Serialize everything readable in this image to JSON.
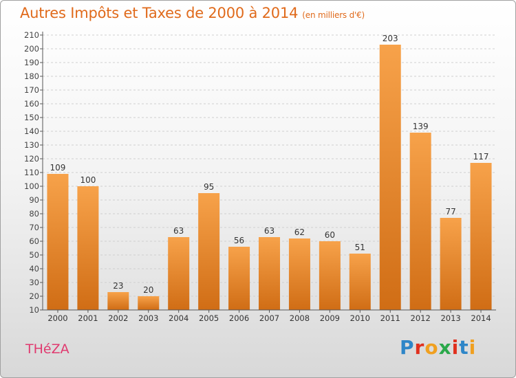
{
  "header": {
    "title": "Autres Impôts et Taxes de 2000 à 2014",
    "subtitle": "(en milliers d'€)"
  },
  "footer": {
    "commune": "THéZA",
    "brand": "Proxiti",
    "brand_colors": [
      "#2e86c8",
      "#e0301e",
      "#f0a020",
      "#2aa84a",
      "#e0301e",
      "#2e86c8",
      "#f0a020"
    ]
  },
  "colors": {
    "bar_top": "#f7a24a",
    "bar_bottom": "#d06d15",
    "title": "#e06a1b",
    "commune": "#e03a6f"
  },
  "chart_data": {
    "type": "bar",
    "categories": [
      "2000",
      "2001",
      "2002",
      "2003",
      "2004",
      "2005",
      "2006",
      "2007",
      "2008",
      "2009",
      "2010",
      "2011",
      "2012",
      "2013",
      "2014"
    ],
    "values": [
      109,
      100,
      23,
      20,
      63,
      95,
      56,
      63,
      62,
      60,
      51,
      203,
      139,
      77,
      117
    ],
    "title": "Autres Impôts et Taxes de 2000 à 2014",
    "subtitle": "(en milliers d'€)",
    "ylim": [
      10,
      210
    ],
    "yticks": [
      10,
      20,
      30,
      40,
      50,
      60,
      70,
      80,
      90,
      100,
      110,
      120,
      130,
      140,
      150,
      160,
      170,
      180,
      190,
      200,
      210
    ],
    "grid": true
  }
}
